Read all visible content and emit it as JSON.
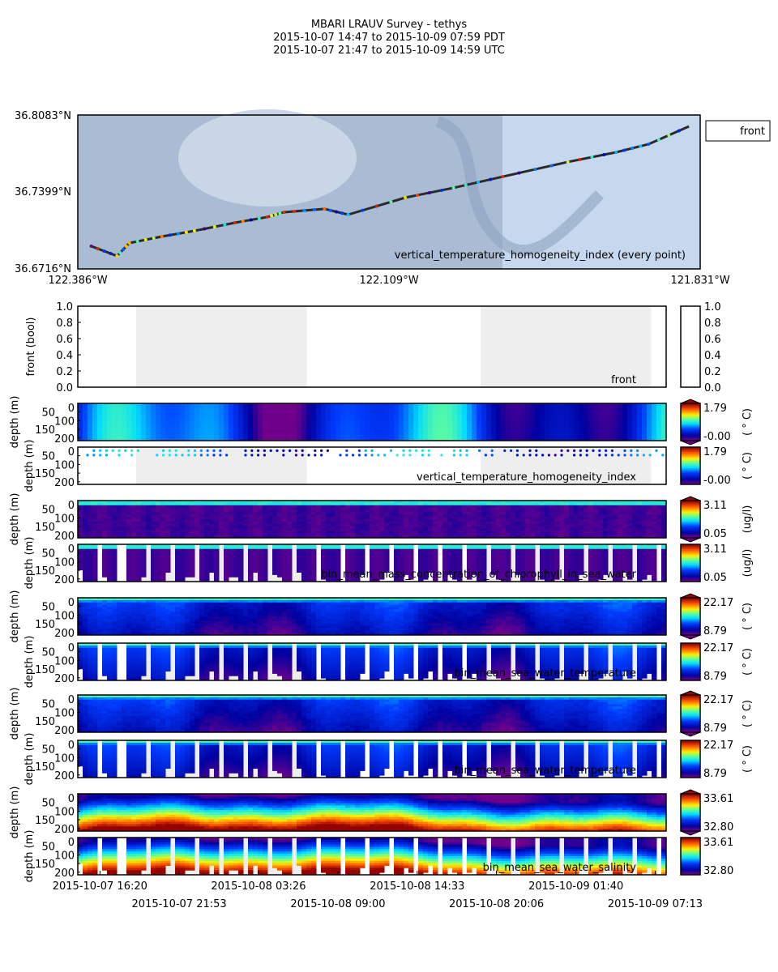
{
  "title": {
    "line1": "MBARI LRAUV Survey - tethys",
    "line2": "2015-10-07 14:47  to  2015-10-09 07:59 PDT",
    "line3": "2015-10-07 21:47  to  2015-10-09 14:59 UTC"
  },
  "chart_data": [
    {
      "type": "scatter",
      "name": "map",
      "lat_ticks": [
        "36.8083°N",
        "36.7399°N",
        "36.6716°N"
      ],
      "lon_ticks": [
        "122.386°W",
        "122.109°W",
        "121.831°W"
      ],
      "xlim": [
        -122.386,
        -121.831
      ],
      "ylim": [
        36.6716,
        36.8083
      ],
      "annotation": "vertical_temperature_homogeneity_index (every point)",
      "legend": {
        "label": "front",
        "placement": "outside-top-right"
      },
      "track": [
        [
          -122.374,
          36.6918
        ],
        [
          -122.351,
          36.6831
        ],
        [
          -122.34,
          36.6946
        ],
        [
          -122.311,
          36.7004
        ],
        [
          -122.282,
          36.7054
        ],
        [
          -122.246,
          36.7126
        ],
        [
          -122.217,
          36.7177
        ],
        [
          -122.202,
          36.722
        ],
        [
          -122.166,
          36.7249
        ],
        [
          -122.145,
          36.7198
        ],
        [
          -122.094,
          36.7349
        ],
        [
          -122.051,
          36.7436
        ],
        [
          -122.007,
          36.7536
        ],
        [
          -121.949,
          36.7666
        ],
        [
          -121.906,
          36.7752
        ],
        [
          -121.877,
          36.7824
        ],
        [
          -121.841,
          36.7982
        ]
      ],
      "track_color": "#2a2a2a"
    },
    {
      "type": "line",
      "name": "front",
      "ylabel": "front (bool)",
      "annotation": "front",
      "ylim": [
        0,
        1
      ],
      "yticks": [
        "0.0",
        "0.2",
        "0.4",
        "0.6",
        "0.8",
        "1.0"
      ],
      "colorbar_ticks": [
        "0.0",
        "0.2",
        "0.4",
        "0.6",
        "0.8",
        "1.0"
      ]
    },
    {
      "type": "heatmap",
      "name": "vthi-interp",
      "ylabel": "depth (m)",
      "vmin": "-0.00",
      "vmax": "1.79",
      "unit": "( ° C)",
      "kind": "vthi",
      "style": "interp"
    },
    {
      "type": "scatter",
      "name": "vthi-points",
      "ylabel": "depth (m)",
      "vmin": "-0.00",
      "vmax": "1.79",
      "unit": "( ° C)",
      "kind": "vthi",
      "style": "points",
      "annotation": "vertical_temperature_homogeneity_index"
    },
    {
      "type": "heatmap",
      "name": "chl-interp",
      "ylabel": "depth (m)",
      "vmin": "0.05",
      "vmax": "3.11",
      "unit": "(ug/l)",
      "kind": "chl",
      "style": "interp"
    },
    {
      "type": "heatmap",
      "name": "chl-profiles",
      "ylabel": "depth (m)",
      "vmin": "0.05",
      "vmax": "3.11",
      "unit": "(ug/l)",
      "kind": "chl",
      "style": "profiles",
      "annotation": "bin_mean_mass_concentration_of_chlorophyll_in_sea_water"
    },
    {
      "type": "heatmap",
      "name": "temp-interp",
      "ylabel": "depth (m)",
      "vmin": "8.79",
      "vmax": "22.17",
      "unit": "( ° C)",
      "kind": "temp",
      "style": "interp"
    },
    {
      "type": "heatmap",
      "name": "temp-profiles",
      "ylabel": "depth (m)",
      "vmin": "8.79",
      "vmax": "22.17",
      "unit": "( ° C)",
      "kind": "temp",
      "style": "profiles",
      "annotation": "bin_mean_sea_water_temperature"
    },
    {
      "type": "heatmap",
      "name": "temp-interp-2",
      "ylabel": "depth (m)",
      "vmin": "8.79",
      "vmax": "22.17",
      "unit": "( ° C)",
      "kind": "temp",
      "style": "interp"
    },
    {
      "type": "heatmap",
      "name": "temp-profiles-2",
      "ylabel": "depth (m)",
      "vmin": "8.79",
      "vmax": "22.17",
      "unit": "( ° C)",
      "kind": "temp",
      "style": "profiles",
      "annotation": "bin_mean_sea_water_temperature"
    },
    {
      "type": "heatmap",
      "name": "sal-interp",
      "ylabel": "depth (m)",
      "vmin": "32.80",
      "vmax": "33.61",
      "unit": "",
      "kind": "sal",
      "style": "interp"
    },
    {
      "type": "heatmap",
      "name": "sal-profiles",
      "ylabel": "depth (m)",
      "vmin": "32.80",
      "vmax": "33.61",
      "unit": "",
      "kind": "sal",
      "style": "profiles",
      "annotation": "bin_mean_sea_water_salinity"
    }
  ],
  "depth_ticks": [
    "0",
    "50",
    "100",
    "150",
    "200"
  ],
  "depth_range": [
    0,
    215
  ],
  "time_range": [
    "2015-10-07 14:47",
    "2015-10-09 07:59"
  ],
  "night_shading": [
    [
      "2015-10-07 18:52",
      "2015-10-08 06:49"
    ],
    [
      "2015-10-08 18:59",
      "2015-10-09 06:56"
    ]
  ],
  "shade_color": "#eeeeee",
  "time_ticks": [
    "2015-10-07 16:20",
    "2015-10-07 21:53",
    "2015-10-08 03:26",
    "2015-10-08 09:00",
    "2015-10-08 14:33",
    "2015-10-08 20:06",
    "2015-10-09 01:40",
    "2015-10-09 07:13"
  ]
}
